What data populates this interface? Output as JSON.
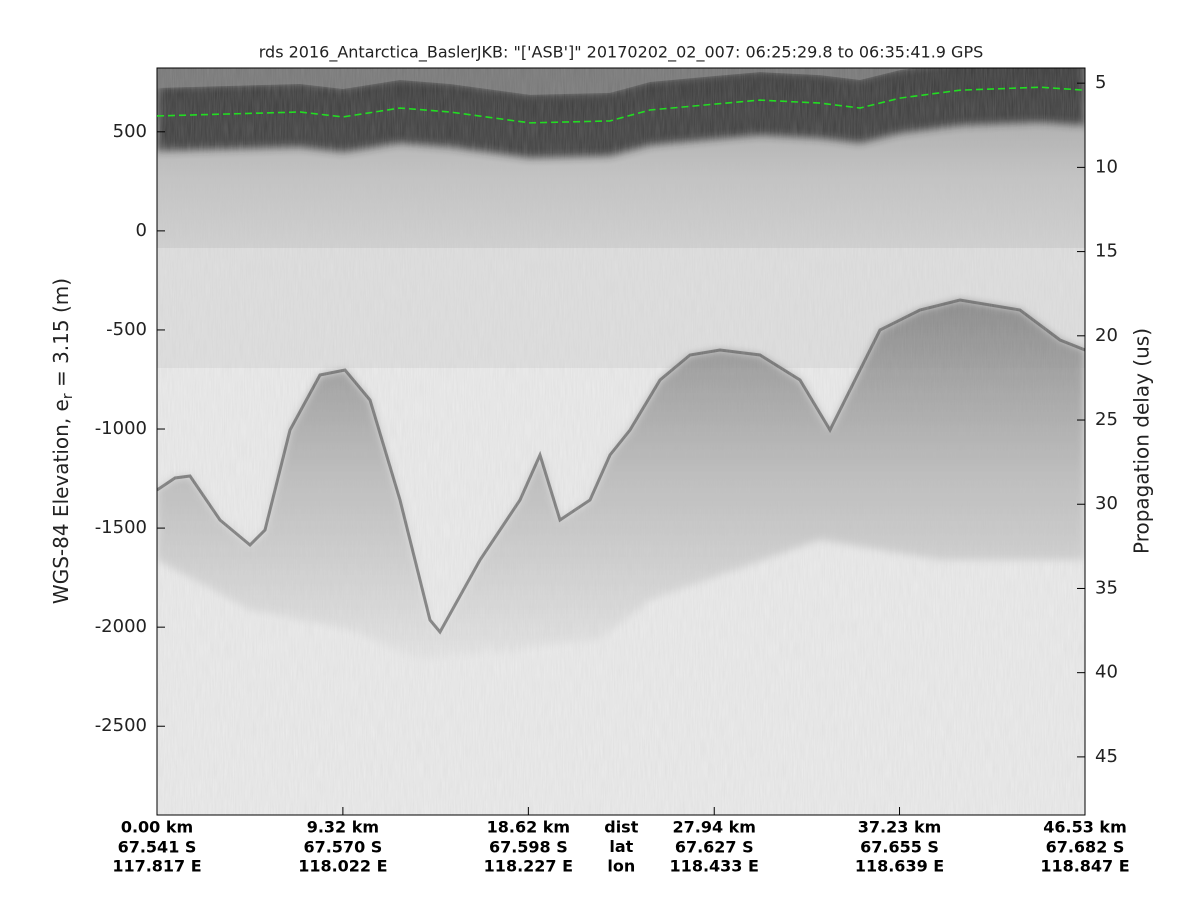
{
  "chart_data": {
    "type": "echogram",
    "title": "rds 2016_Antarctica_BaslerJKB: \"['ASB']\"  20170202_02_007: 06:25:29.8 to 06:35:41.9 GPS",
    "ylabel": [
      "WGS-84 Elevation, e",
      "r",
      " = 3.15 (m)"
    ],
    "y2label": "Propagation delay (us)",
    "xlim": [
      0,
      46.53
    ],
    "xticks": [
      {
        "value": 0,
        "label": "0.00 km"
      },
      {
        "value": 9.32,
        "label": "9.32 km"
      },
      {
        "value": 18.62,
        "label": "18.62 km"
      },
      {
        "value": 27.94,
        "label": "27.94 km"
      },
      {
        "value": 37.23,
        "label": "37.23 km"
      },
      {
        "value": 46.53,
        "label": "46.53 km"
      }
    ],
    "xtick_lat": [
      "67.541 S",
      "67.570 S",
      "67.598 S",
      "67.627 S",
      "67.655 S",
      "67.682 S"
    ],
    "xtick_lon": [
      "117.817 E",
      "118.022 E",
      "118.227 E",
      "118.433 E",
      "118.639 E",
      "118.847 E"
    ],
    "xtick_rows": [
      "dist",
      "lat",
      "lon"
    ],
    "ylim": [
      -2948,
      822
    ],
    "yticks": [
      -2500,
      -2000,
      -1500,
      -1000,
      -500,
      0,
      500
    ],
    "y2lim": [
      48.45,
      4.1
    ],
    "y2ticks": [
      5,
      10,
      15,
      20,
      25,
      30,
      35,
      40,
      45
    ],
    "surface": {
      "color": "#22dd22",
      "x": [
        0,
        7.17,
        9.33,
        12.18,
        14.69,
        18.7,
        22.71,
        24.72,
        27.98,
        30.23,
        33.24,
        35.25,
        37.25,
        40.26,
        44.27,
        46.53
      ],
      "values": [
        580,
        600,
        575,
        620,
        600,
        545,
        555,
        610,
        640,
        660,
        645,
        620,
        670,
        710,
        725,
        710
      ]
    }
  }
}
